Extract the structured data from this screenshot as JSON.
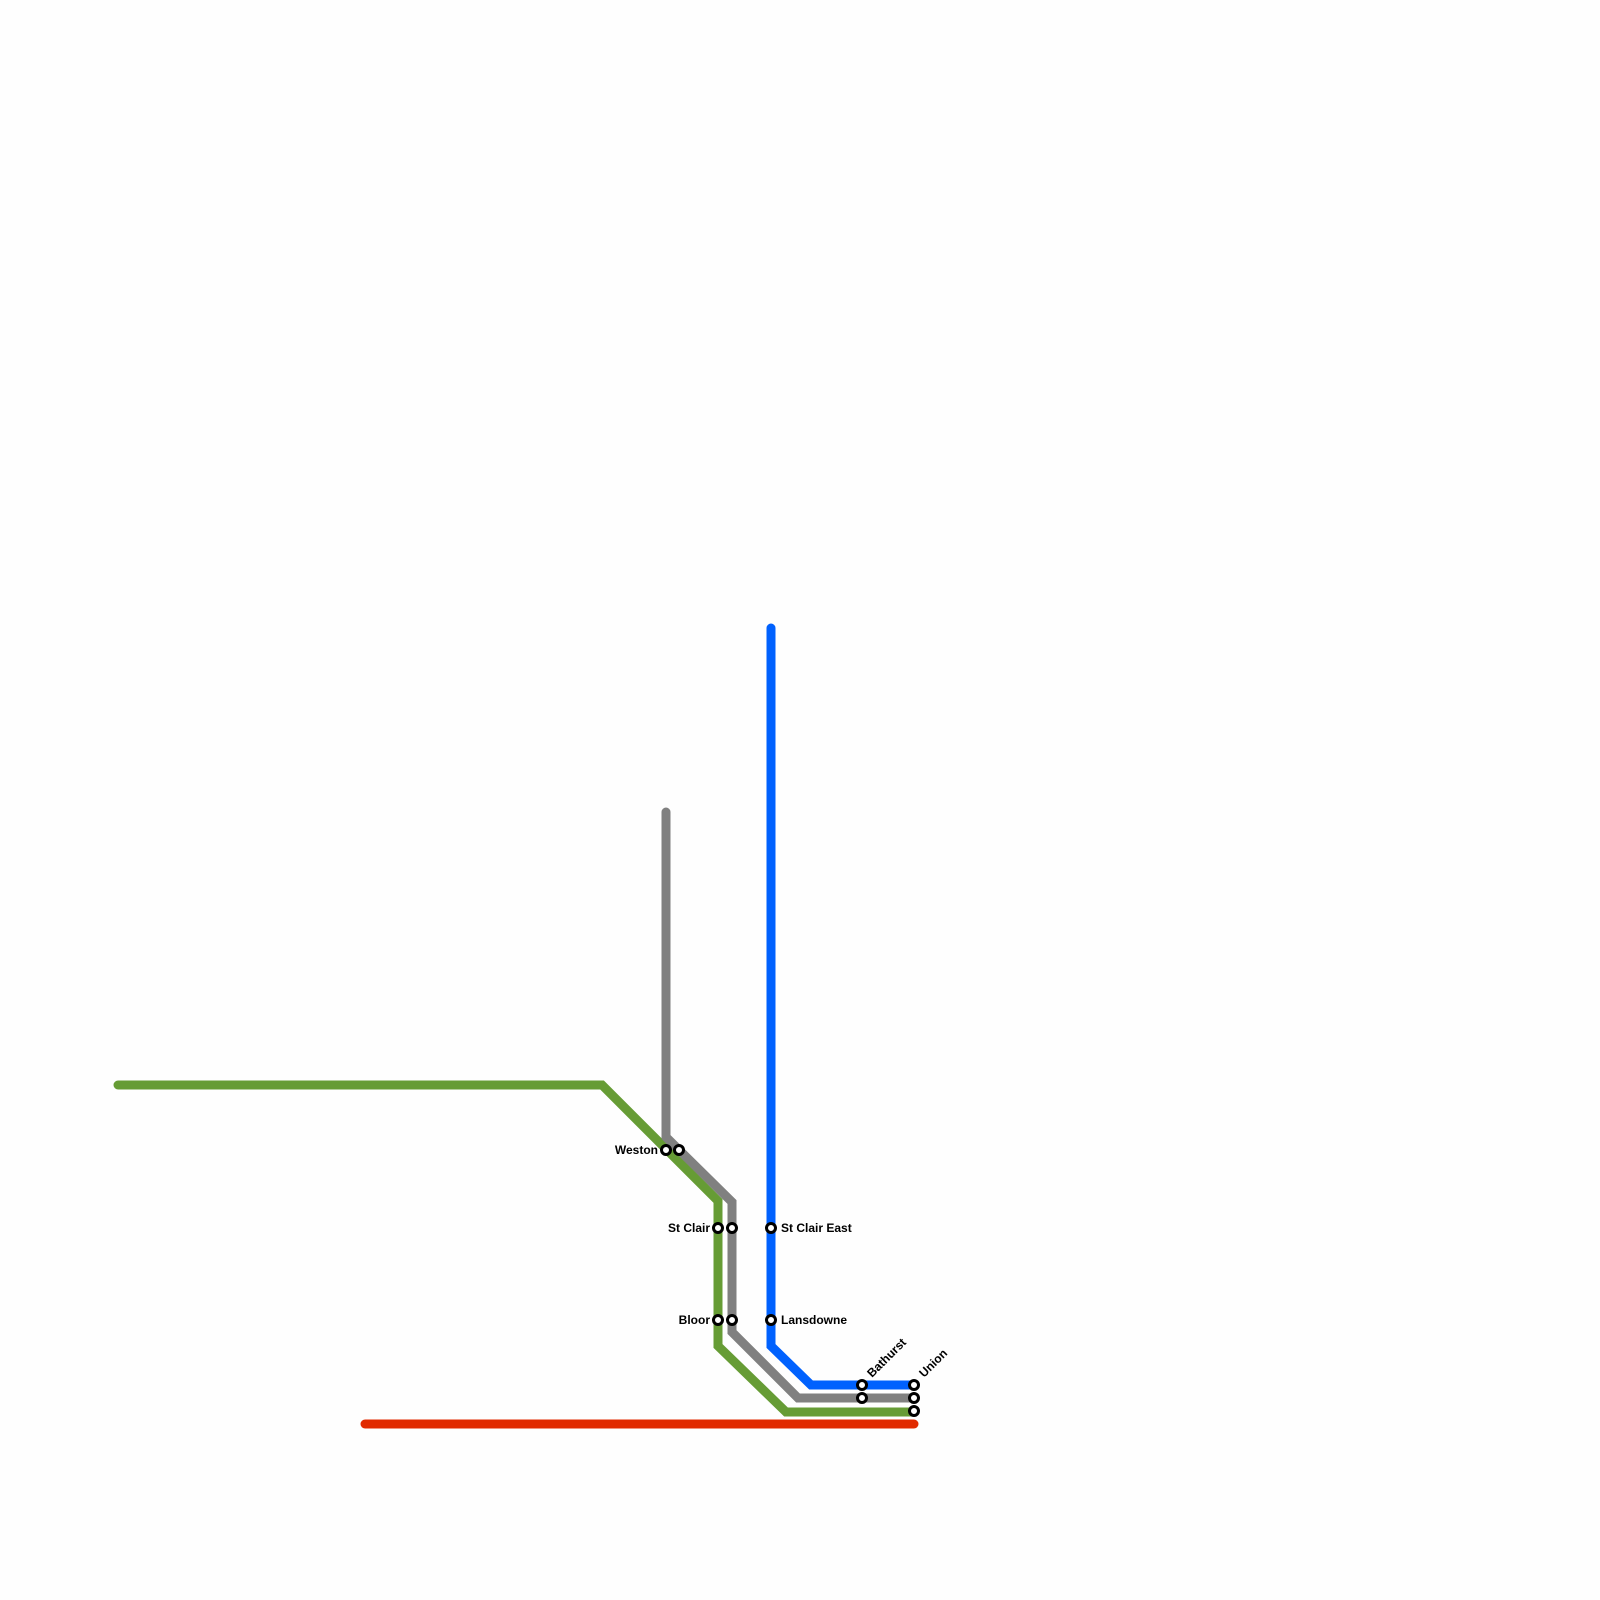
{
  "lines": [
    {
      "id": "green",
      "color": "#669c35"
    },
    {
      "id": "gray",
      "color": "#808080"
    },
    {
      "id": "blue",
      "color": "#0061fe"
    },
    {
      "id": "red",
      "color": "#e12a00"
    }
  ],
  "stations": [
    {
      "id": "weston",
      "name": "Weston",
      "lines": [
        "green",
        "gray"
      ]
    },
    {
      "id": "st-clair",
      "name": "St Clair",
      "lines": [
        "green",
        "gray"
      ]
    },
    {
      "id": "bloor",
      "name": "Bloor",
      "lines": [
        "green",
        "gray"
      ]
    },
    {
      "id": "st-clair-east",
      "name": "St Clair East",
      "lines": [
        "blue"
      ]
    },
    {
      "id": "lansdowne",
      "name": "Lansdowne",
      "lines": [
        "blue"
      ]
    },
    {
      "id": "bathurst",
      "name": "Bathurst",
      "lines": [
        "blue",
        "gray"
      ]
    },
    {
      "id": "union",
      "name": "Union",
      "lines": [
        "blue",
        "gray",
        "green"
      ]
    }
  ]
}
